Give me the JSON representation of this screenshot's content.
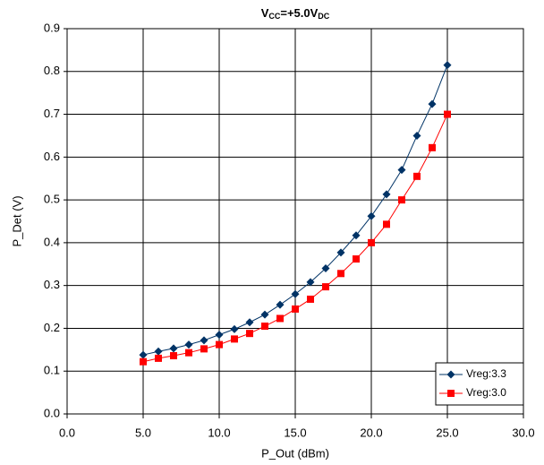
{
  "chart_data": {
    "type": "line",
    "title": [
      "V",
      "CC",
      "=+5.0V",
      "DC"
    ],
    "xlabel": "P_Out (dBm)",
    "ylabel": "P_Det (V)",
    "x": [
      5,
      6,
      7,
      8,
      9,
      10,
      11,
      12,
      13,
      14,
      15,
      16,
      17,
      18,
      19,
      20,
      21,
      22,
      23,
      24,
      25
    ],
    "series": [
      {
        "name": "Vreg:3.3",
        "color": "#003366",
        "marker": "diamond",
        "values": [
          0.138,
          0.146,
          0.153,
          0.162,
          0.172,
          0.185,
          0.198,
          0.214,
          0.232,
          0.255,
          0.28,
          0.308,
          0.34,
          0.377,
          0.417,
          0.462,
          0.513,
          0.57,
          0.65,
          0.724,
          0.815
        ]
      },
      {
        "name": "Vreg:3.0",
        "color": "#ff0000",
        "marker": "square",
        "values": [
          0.122,
          0.13,
          0.136,
          0.143,
          0.152,
          0.162,
          0.175,
          0.188,
          0.205,
          0.223,
          0.245,
          0.268,
          0.297,
          0.328,
          0.362,
          0.4,
          0.443,
          0.5,
          0.555,
          0.622,
          0.7
        ]
      }
    ],
    "xlim": [
      0,
      30
    ],
    "xticks": [
      {
        "value": 0,
        "label": "0.0"
      },
      {
        "value": 5,
        "label": "5.0"
      },
      {
        "value": 10,
        "label": "10.0"
      },
      {
        "value": 15,
        "label": "15.0"
      },
      {
        "value": 20,
        "label": "20.0"
      },
      {
        "value": 25,
        "label": "25.0"
      },
      {
        "value": 30,
        "label": "30.0"
      }
    ],
    "ylim": [
      0,
      0.9
    ],
    "yticks": [
      {
        "value": 0,
        "label": "0.0"
      },
      0.1,
      0.2,
      0.3,
      0.4,
      0.5,
      0.6,
      0.7,
      0.8,
      0.9
    ],
    "grid": true,
    "legend": "lower right"
  }
}
